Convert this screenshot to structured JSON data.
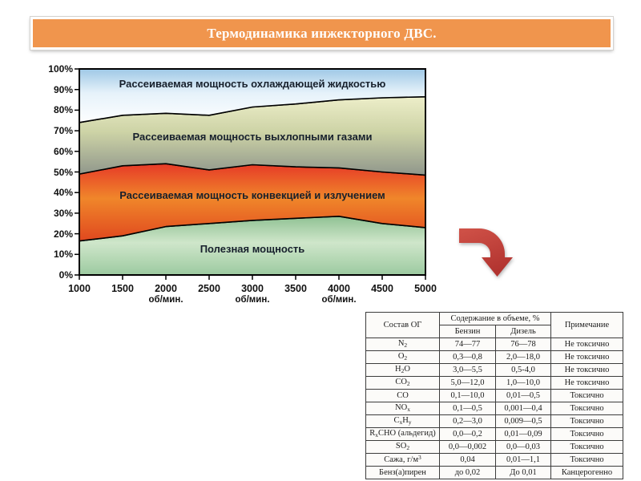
{
  "title": {
    "text": "Термодинамика инжекторного ДВС."
  },
  "colors": {
    "title_bg": "#F0954D",
    "title_text": "#FFFFFF",
    "chart_label_text": "#17202C",
    "axis_text": "#111111",
    "arrow_gradient": [
      "#D05248",
      "#B23430"
    ],
    "table_border": "#3C3C3C"
  },
  "chart_data": {
    "type": "area",
    "stacked": "percent",
    "title": "",
    "xlabel": "об/мин.",
    "ylabel": "",
    "ylim": [
      0,
      100
    ],
    "grid": false,
    "legend": "labels drawn inside areas",
    "x": [
      1000,
      1500,
      2000,
      2500,
      3000,
      3500,
      4000,
      4500,
      5000
    ],
    "x_tick_labels": [
      "1000",
      "1500",
      "2000",
      "2500",
      "3000",
      "3500",
      "4000",
      "4500",
      "5000"
    ],
    "x_unit_label": "об/мин.",
    "x_unit_positions": [
      2000,
      3000,
      4000
    ],
    "y_tick_labels": [
      "0%",
      "10%",
      "20%",
      "30%",
      "40%",
      "50%",
      "60%",
      "70%",
      "80%",
      "90%",
      "100%"
    ],
    "labels": [
      "Рассеиваемая мощность охлаждающей жидкостью",
      "Рассеиваемая мощность выхлопными газами",
      "Рассеиваемая мощность конвекцией и излучением",
      "Полезная мощность"
    ],
    "series": [
      {
        "name": "Полезная мощность",
        "values": [
          16.5,
          19,
          23.5,
          25,
          26.5,
          27.5,
          28.5,
          25,
          23
        ],
        "gradient": [
          "#8FC193",
          "#CFE6CA",
          "#9CCAA0"
        ]
      },
      {
        "name": "Рассеиваемая мощность конвекцией и излучением",
        "values": [
          32.5,
          34,
          30.5,
          26,
          27,
          25,
          23.5,
          25,
          25.5
        ],
        "gradient": [
          "#E63A28",
          "#F0862A",
          "#E0481F"
        ]
      },
      {
        "name": "Рассеиваемая мощность выхлопными газами",
        "values": [
          25,
          24.5,
          24.5,
          26.5,
          28,
          30.5,
          33,
          36,
          38
        ],
        "gradient": [
          "#EDEEC9",
          "#CDD3A6",
          "#8F968B"
        ]
      },
      {
        "name": "Рассеиваемая мощность охлаждающей жидкостью",
        "values": [
          26,
          22.5,
          21.5,
          22.5,
          18.5,
          17,
          15,
          14,
          13.5
        ],
        "gradient": [
          "#9FC8E6",
          "#E6F2FA",
          "#FDFEFF"
        ]
      }
    ]
  },
  "table": {
    "header": {
      "composition": "Состав ОГ",
      "content": "Содержание в объеме, %",
      "petrol": "Бензин",
      "diesel": "Дизель",
      "note": "Примечание"
    },
    "rows": [
      [
        "N~2~",
        "74—77",
        "76—78",
        "Не токсично"
      ],
      [
        "O~2~",
        "0,3—0,8",
        "2,0—18,0",
        "Не токсично"
      ],
      [
        "H~2~O",
        "3,0—5,5",
        "0,5-4,0",
        "Не токсично"
      ],
      [
        "CO~2~",
        "5,0—12,0",
        "1,0—10,0",
        "Не токсично"
      ],
      [
        "CO",
        "0,1—10,0",
        "0,01—0,5",
        "Токсично"
      ],
      [
        "NO~x~",
        "0,1—0,5",
        "0,001—0,4",
        "Токсично"
      ],
      [
        "C~x~H~y~",
        "0,2—3,0",
        "0,009—0,5",
        "Токсично"
      ],
      [
        "R~x~CHO (альдегид)",
        "0,0—0,2",
        "0,01—0,09",
        "Токсично"
      ],
      [
        "SO~2~",
        "0,0—0,002",
        "0,0—0,03",
        "Токсично"
      ],
      [
        "Сажа, г/м^3^",
        "0,04",
        "0,01—1,1",
        "Токсично"
      ],
      [
        "Бенз(а)пирен",
        "до 0,02",
        "До 0,01",
        "Канцерогенно"
      ]
    ]
  }
}
